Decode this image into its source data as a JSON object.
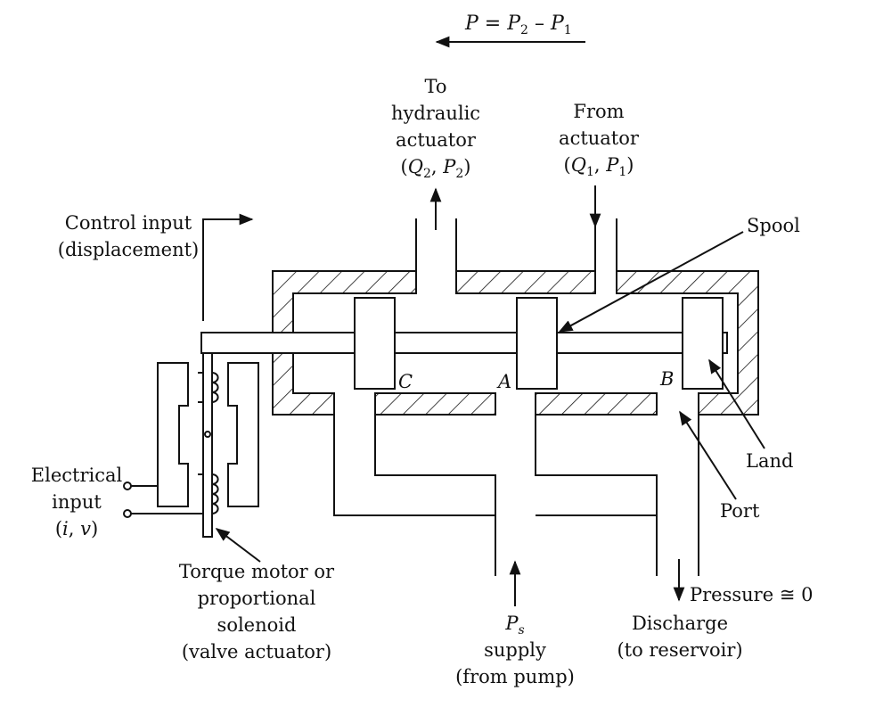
{
  "formula": {
    "p": "P",
    "eq": " = ",
    "p2": "P",
    "p2_sub": "2",
    "minus": " – ",
    "p1": "P",
    "p1_sub": "1"
  },
  "labels": {
    "to_actuator": {
      "line1": "To",
      "line2": "hydraulic",
      "line3": "actuator",
      "q": "Q",
      "q_sub": "2",
      "p": "P",
      "p_sub": "2"
    },
    "from_actuator": {
      "line1": "From",
      "line2": "actuator",
      "q": "Q",
      "q_sub": "1",
      "p": "P",
      "p_sub": "1"
    },
    "control_input": {
      "line1": "Control input",
      "line2": "(displacement)"
    },
    "spool": "Spool",
    "land": "Land",
    "port": "Port",
    "ports": {
      "c": "C",
      "a": "A",
      "b": "B"
    },
    "electrical_input": {
      "line1": "Electrical",
      "line2": "input",
      "i": "i",
      "v": "v"
    },
    "torque_motor": {
      "line1": "Torque motor or",
      "line2": "proportional",
      "line3": "solenoid",
      "line4": "(valve actuator)"
    },
    "supply": {
      "ps": "P",
      "ps_sub": "s",
      "line2": "supply",
      "line3": "(from pump)"
    },
    "discharge": {
      "line1": "Discharge",
      "line2": "(to reservoir)"
    },
    "pressure": "Pressure ≅ 0"
  }
}
